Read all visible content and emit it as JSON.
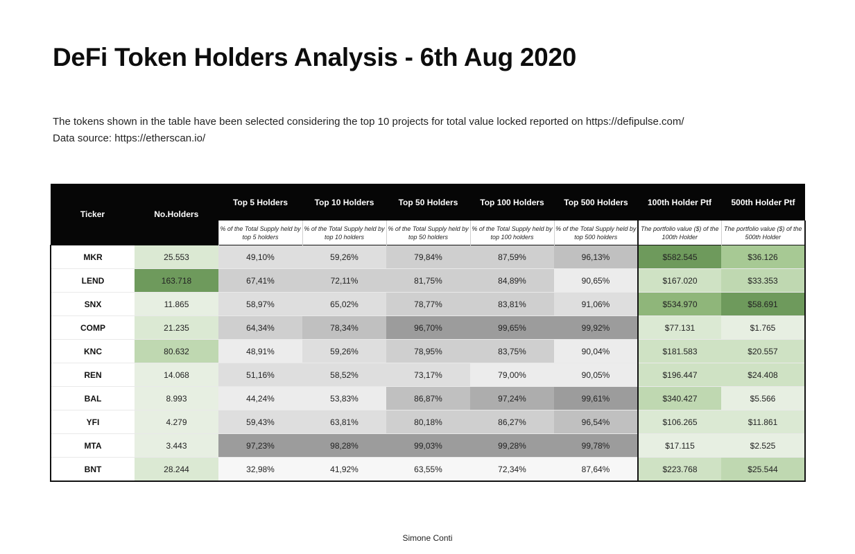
{
  "title": "DeFi Token Holders Analysis - 6th Aug 2020",
  "description": {
    "line1": "The tokens shown in the table have been selected considering the top 10 projects for total value locked reported on https://defipulse.com/",
    "line2": "Data source: https://etherscan.io/"
  },
  "table": {
    "headers": {
      "ticker": "Ticker",
      "no_holders": "No.Holders",
      "top5": "Top 5 Holders",
      "top10": "Top 10 Holders",
      "top50": "Top 50 Holders",
      "top100": "Top 100 Holders",
      "top500": "Top 500 Holders",
      "ptf100": "100th Holder Ptf",
      "ptf500": "500th Holder Ptf"
    },
    "subheaders": {
      "top5": "% of the Total Supply held by top 5 holders",
      "top10": "% of the Total Supply held by top 10 holders",
      "top50": "% of the Total Supply held by top 50 holders",
      "top100": "% of the Total Supply held by top 100 holders",
      "top500": "% of the Total Supply held by top 500 holders",
      "ptf100": "The portfolio value ($) of the 100th Holder",
      "ptf500": "The portfolio value ($) of the 500th Holder"
    },
    "rows": [
      {
        "ticker": "MKR",
        "holders": "25.553",
        "top5": "49,10%",
        "top10": "59,26%",
        "top50": "79,84%",
        "top100": "87,59%",
        "top500": "96,13%",
        "ptf100": "$582.545",
        "ptf500": "$36.126"
      },
      {
        "ticker": "LEND",
        "holders": "163.718",
        "top5": "67,41%",
        "top10": "72,11%",
        "top50": "81,75%",
        "top100": "84,89%",
        "top500": "90,65%",
        "ptf100": "$167.020",
        "ptf500": "$33.353"
      },
      {
        "ticker": "SNX",
        "holders": "11.865",
        "top5": "58,97%",
        "top10": "65,02%",
        "top50": "78,77%",
        "top100": "83,81%",
        "top500": "91,06%",
        "ptf100": "$534.970",
        "ptf500": "$58.691"
      },
      {
        "ticker": "COMP",
        "holders": "21.235",
        "top5": "64,34%",
        "top10": "78,34%",
        "top50": "96,70%",
        "top100": "99,65%",
        "top500": "99,92%",
        "ptf100": "$77.131",
        "ptf500": "$1.765"
      },
      {
        "ticker": "KNC",
        "holders": "80.632",
        "top5": "48,91%",
        "top10": "59,26%",
        "top50": "78,95%",
        "top100": "83,75%",
        "top500": "90,04%",
        "ptf100": "$181.583",
        "ptf500": "$20.557"
      },
      {
        "ticker": "REN",
        "holders": "14.068",
        "top5": "51,16%",
        "top10": "58,52%",
        "top50": "73,17%",
        "top100": "79,00%",
        "top500": "90,05%",
        "ptf100": "$196.447",
        "ptf500": "$24.408"
      },
      {
        "ticker": "BAL",
        "holders": "8.993",
        "top5": "44,24%",
        "top10": "53,83%",
        "top50": "86,87%",
        "top100": "97,24%",
        "top500": "99,61%",
        "ptf100": "$340.427",
        "ptf500": "$5.566"
      },
      {
        "ticker": "YFI",
        "holders": "4.279",
        "top5": "59,43%",
        "top10": "63,81%",
        "top50": "80,18%",
        "top100": "86,27%",
        "top500": "96,54%",
        "ptf100": "$106.265",
        "ptf500": "$11.861"
      },
      {
        "ticker": "MTA",
        "holders": "3.443",
        "top5": "97,23%",
        "top10": "98,28%",
        "top50": "99,03%",
        "top100": "99,28%",
        "top500": "99,78%",
        "ptf100": "$17.115",
        "ptf500": "$2.525"
      },
      {
        "ticker": "BNT",
        "holders": "28.244",
        "top5": "32,98%",
        "top10": "41,92%",
        "top50": "63,55%",
        "top100": "72,34%",
        "top500": "87,64%",
        "ptf100": "$223.768",
        "ptf500": "$25.544"
      }
    ]
  },
  "colors": {
    "header_bg": "#060606",
    "green_scale": [
      "#e7efe2",
      "#dbe9d3",
      "#cfe2c4",
      "#bfd8b1",
      "#a7c994",
      "#8fb67a",
      "#6e9a5c"
    ],
    "gray_scale": [
      "#f7f7f7",
      "#ececec",
      "#dedede",
      "#cfcfcf",
      "#c0c0c0",
      "#adadad",
      "#9c9c9c"
    ]
  },
  "footer": "Simone Conti"
}
